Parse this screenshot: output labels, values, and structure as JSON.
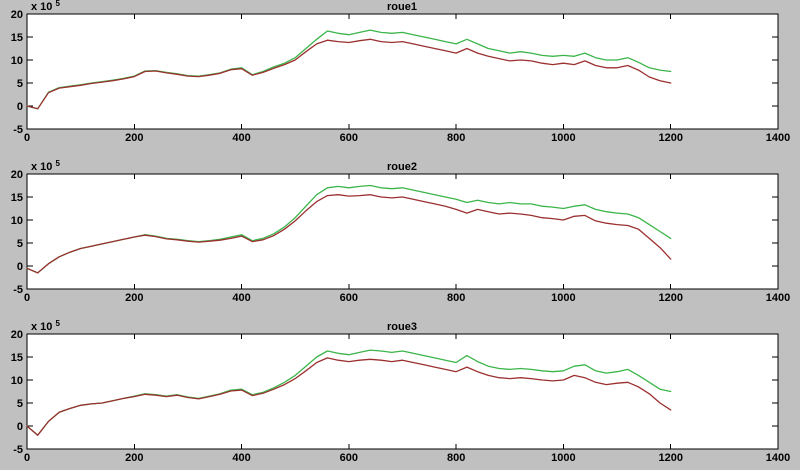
{
  "figure": {
    "background": "#c0c0c0",
    "plot_background": "#ffffff",
    "axis_color": "#000000",
    "tick_label_color": "#000000",
    "y_exponent_prefix": "x 10",
    "y_exponent": "5"
  },
  "chart_data": [
    {
      "type": "line",
      "title": "roue1",
      "xlabel": "",
      "ylabel": "",
      "xlim": [
        0,
        1400
      ],
      "ylim": [
        -5,
        20
      ],
      "x_ticks": [
        0,
        200,
        400,
        600,
        800,
        1000,
        1200,
        1400
      ],
      "y_ticks": [
        -5,
        0,
        5,
        10,
        15,
        20
      ],
      "y_unit_multiplier": "x 10^5",
      "grid": false,
      "legend": null,
      "x_start": 0,
      "x_step": 20,
      "series": [
        {
          "name": "green-line",
          "color": "#3bb54a",
          "values": [
            0,
            -0.6,
            3.0,
            4.0,
            4.3,
            4.6,
            5.0,
            5.3,
            5.6,
            6.0,
            6.5,
            7.6,
            7.7,
            7.3,
            7.0,
            6.6,
            6.5,
            6.8,
            7.2,
            8.0,
            8.3,
            6.8,
            7.5,
            8.5,
            9.3,
            10.5,
            12.5,
            14.5,
            16.3,
            15.8,
            15.5,
            16.0,
            16.5,
            16.0,
            15.8,
            16.0,
            15.5,
            15.0,
            14.5,
            14.0,
            13.5,
            14.5,
            13.5,
            12.5,
            12.0,
            11.5,
            11.8,
            11.5,
            11.0,
            10.8,
            11.0,
            10.8,
            11.5,
            10.5,
            10.0,
            10.0,
            10.5,
            9.5,
            8.3,
            7.8,
            7.5
          ]
        },
        {
          "name": "red-line",
          "color": "#9b3030",
          "values": [
            0,
            -0.6,
            2.9,
            3.9,
            4.2,
            4.5,
            4.9,
            5.2,
            5.5,
            5.9,
            6.4,
            7.5,
            7.6,
            7.2,
            6.9,
            6.5,
            6.4,
            6.7,
            7.1,
            7.9,
            8.1,
            6.7,
            7.3,
            8.2,
            9.0,
            10.0,
            11.8,
            13.5,
            14.3,
            14.0,
            13.8,
            14.2,
            14.5,
            14.0,
            13.8,
            14.0,
            13.5,
            13.0,
            12.5,
            12.0,
            11.5,
            12.5,
            11.5,
            10.8,
            10.3,
            9.8,
            10.0,
            9.8,
            9.3,
            9.0,
            9.3,
            9.0,
            9.8,
            8.8,
            8.3,
            8.3,
            8.8,
            7.8,
            6.3,
            5.5,
            5.0
          ]
        }
      ]
    },
    {
      "type": "line",
      "title": "roue2",
      "xlabel": "",
      "ylabel": "",
      "xlim": [
        0,
        1400
      ],
      "ylim": [
        -5,
        20
      ],
      "x_ticks": [
        0,
        200,
        400,
        600,
        800,
        1000,
        1200,
        1400
      ],
      "y_ticks": [
        -5,
        0,
        5,
        10,
        15,
        20
      ],
      "y_unit_multiplier": "x 10^5",
      "grid": false,
      "legend": null,
      "x_start": 0,
      "x_step": 20,
      "series": [
        {
          "name": "green-line",
          "color": "#3bb54a",
          "values": [
            -0.5,
            -1.5,
            0.5,
            2.0,
            3.0,
            3.8,
            4.3,
            4.8,
            5.3,
            5.8,
            6.3,
            6.8,
            6.5,
            6.0,
            5.8,
            5.5,
            5.3,
            5.5,
            5.8,
            6.3,
            6.8,
            5.5,
            6.0,
            7.0,
            8.5,
            10.5,
            13.0,
            15.5,
            17.0,
            17.3,
            17.0,
            17.3,
            17.5,
            17.0,
            16.8,
            17.0,
            16.5,
            16.0,
            15.5,
            15.0,
            14.5,
            13.8,
            14.3,
            13.8,
            13.5,
            13.8,
            13.5,
            13.5,
            13.0,
            12.8,
            12.5,
            13.0,
            13.3,
            12.3,
            11.8,
            11.5,
            11.3,
            10.5,
            9.0,
            7.5,
            6.0
          ]
        },
        {
          "name": "red-line",
          "color": "#9b3030",
          "values": [
            -0.5,
            -1.5,
            0.5,
            2.0,
            3.0,
            3.8,
            4.3,
            4.8,
            5.3,
            5.8,
            6.3,
            6.7,
            6.4,
            5.9,
            5.7,
            5.4,
            5.2,
            5.4,
            5.6,
            6.0,
            6.5,
            5.3,
            5.7,
            6.6,
            8.0,
            9.8,
            12.0,
            14.0,
            15.3,
            15.5,
            15.2,
            15.3,
            15.5,
            15.0,
            14.8,
            15.0,
            14.5,
            14.0,
            13.5,
            13.0,
            12.3,
            11.5,
            12.3,
            11.8,
            11.3,
            11.5,
            11.3,
            11.0,
            10.5,
            10.3,
            10.0,
            10.8,
            11.0,
            9.8,
            9.3,
            9.0,
            8.8,
            8.0,
            6.0,
            4.0,
            1.5
          ]
        }
      ]
    },
    {
      "type": "line",
      "title": "roue3",
      "xlabel": "",
      "ylabel": "",
      "xlim": [
        0,
        1400
      ],
      "ylim": [
        -5,
        20
      ],
      "x_ticks": [
        0,
        200,
        400,
        600,
        800,
        1000,
        1200,
        1400
      ],
      "y_ticks": [
        -5,
        0,
        5,
        10,
        15,
        20
      ],
      "y_unit_multiplier": "x 10^5",
      "grid": false,
      "legend": null,
      "x_start": 0,
      "x_step": 20,
      "series": [
        {
          "name": "green-line",
          "color": "#3bb54a",
          "values": [
            0.0,
            -2.0,
            1.0,
            3.0,
            3.8,
            4.5,
            4.8,
            5.0,
            5.5,
            6.0,
            6.5,
            7.0,
            6.8,
            6.5,
            6.8,
            6.3,
            6.0,
            6.5,
            7.0,
            7.8,
            8.0,
            6.8,
            7.3,
            8.3,
            9.5,
            11.0,
            13.0,
            15.0,
            16.3,
            15.8,
            15.5,
            16.0,
            16.5,
            16.3,
            16.0,
            16.3,
            15.8,
            15.3,
            14.8,
            14.3,
            13.8,
            15.3,
            14.0,
            13.0,
            12.5,
            12.3,
            12.5,
            12.3,
            12.0,
            11.8,
            12.0,
            13.0,
            13.3,
            12.0,
            11.5,
            11.8,
            12.3,
            11.0,
            9.5,
            8.0,
            7.5
          ]
        },
        {
          "name": "red-line",
          "color": "#9b3030",
          "values": [
            0.0,
            -2.0,
            1.0,
            3.0,
            3.8,
            4.5,
            4.8,
            5.0,
            5.5,
            6.0,
            6.4,
            6.9,
            6.7,
            6.4,
            6.7,
            6.2,
            5.9,
            6.4,
            6.9,
            7.6,
            7.8,
            6.6,
            7.1,
            8.0,
            9.0,
            10.3,
            12.0,
            13.8,
            14.8,
            14.3,
            14.0,
            14.3,
            14.5,
            14.3,
            14.0,
            14.3,
            13.8,
            13.3,
            12.8,
            12.3,
            11.8,
            12.8,
            11.8,
            11.0,
            10.5,
            10.3,
            10.5,
            10.3,
            10.0,
            9.8,
            10.0,
            11.0,
            10.5,
            9.5,
            9.0,
            9.3,
            9.5,
            8.5,
            7.0,
            5.0,
            3.5
          ]
        }
      ]
    }
  ]
}
